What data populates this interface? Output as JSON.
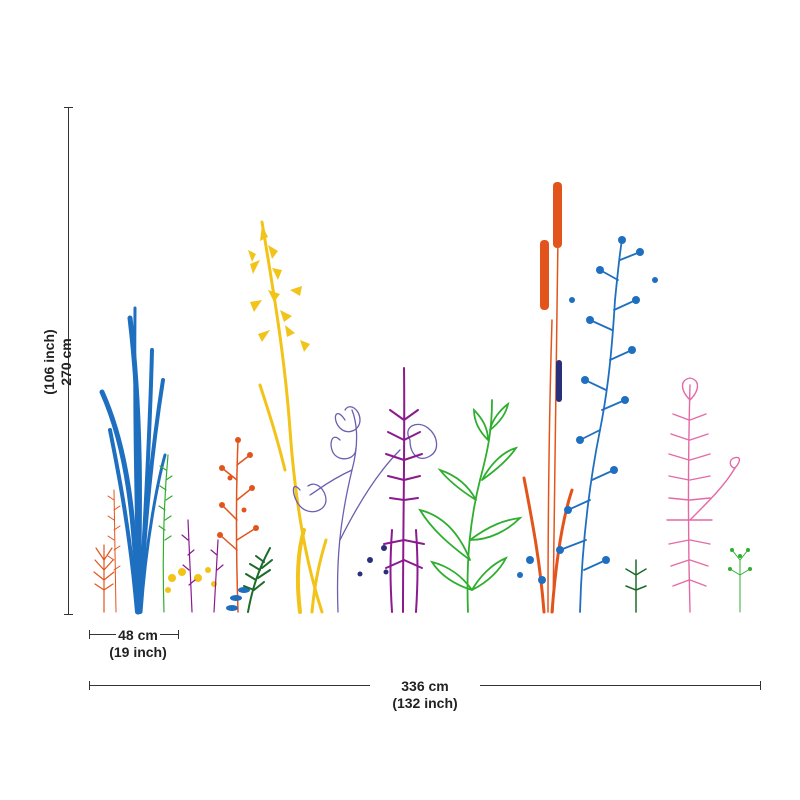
{
  "dimensions": {
    "total_width_cm": "336 cm",
    "total_width_inch": "(132 inch)",
    "panel_width_cm": "48 cm",
    "panel_width_inch": "(19 inch)",
    "height_cm": "270 cm",
    "height_inch": "(106 inch)"
  },
  "colors": {
    "blue": "#1f6fc0",
    "yellow": "#f2c318",
    "orange": "#e3541c",
    "purple": "#8b1a8f",
    "lavender": "#6a5fb0",
    "green": "#2fae2f",
    "pink": "#e46aa6",
    "dark_green": "#1d6b2a",
    "navy": "#2a2f7a"
  }
}
